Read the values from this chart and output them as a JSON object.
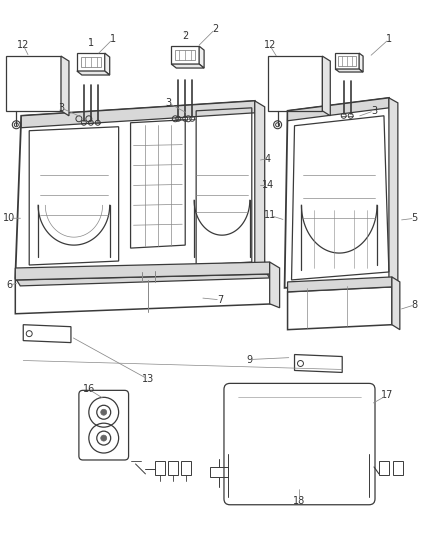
{
  "bg_color": "#ffffff",
  "line_color": "#3a3a3a",
  "light_line": "#888888",
  "text_color": "#333333",
  "leader_color": "#888888",
  "fig_width": 4.38,
  "fig_height": 5.33,
  "dpi": 100,
  "label_fs": 7.0
}
